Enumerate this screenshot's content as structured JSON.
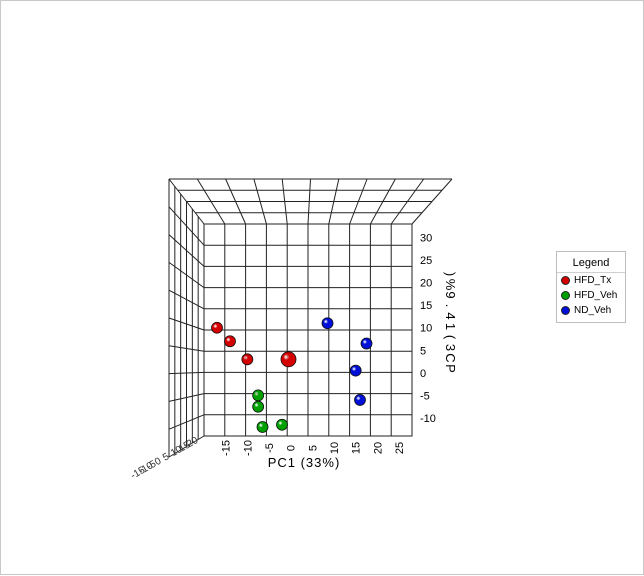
{
  "chart_data": {
    "type": "scatter",
    "title": "",
    "xlabel": "PC1 (33%)",
    "ylabel": "PC3 (14.9%)",
    "zlabel_glyphs": "PC2 (16.6%)",
    "x_ticks": [
      -15,
      -10,
      -5,
      0,
      5,
      10,
      15,
      20,
      25
    ],
    "y_ticks": [
      30,
      25,
      20,
      15,
      10,
      5,
      0,
      -5,
      -10
    ],
    "xlim": [
      -20,
      28
    ],
    "ylim": [
      -14,
      33
    ],
    "grid": true,
    "legend_position": "right",
    "series": [
      {
        "name": "HFD_Tx",
        "color": "#d40000",
        "points": [
          {
            "x": -17,
            "y": 10
          },
          {
            "x": -14,
            "y": 7
          },
          {
            "x": -10,
            "y": 3
          },
          {
            "x": -0.5,
            "y": 3
          }
        ]
      },
      {
        "name": "HFD_Veh",
        "color": "#00a000",
        "points": [
          {
            "x": -7.5,
            "y": -5
          },
          {
            "x": -7.5,
            "y": -7.5
          },
          {
            "x": -6.5,
            "y": -12
          },
          {
            "x": -2,
            "y": -11.5
          }
        ]
      },
      {
        "name": "ND_Veh",
        "color": "#0010d8",
        "points": [
          {
            "x": 8.5,
            "y": 11
          },
          {
            "x": 17.5,
            "y": 6.5
          },
          {
            "x": 15,
            "y": 0.5
          },
          {
            "x": 16,
            "y": -6
          }
        ]
      }
    ]
  },
  "legend": {
    "title": "Legend",
    "items": [
      {
        "label": "HFD_Tx",
        "color": "#d40000"
      },
      {
        "label": "HFD_Veh",
        "color": "#00a000"
      },
      {
        "label": "ND_Veh",
        "color": "#0010d8"
      }
    ]
  }
}
